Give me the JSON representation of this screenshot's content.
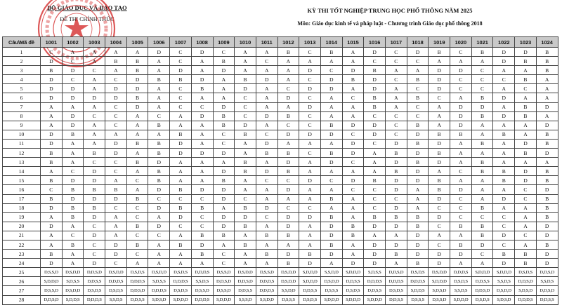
{
  "header": {
    "ministry": "BỘ GIÁO DỤC VÀ ĐÀO TẠO",
    "exam_type": "ĐỀ THI CHÍNH THỨC",
    "exam_title": "KỲ THI TỐT NGHIỆP TRUNG HỌC PHỔ THÔNG NĂM 2025",
    "subject": "Môn: Giáo dục kinh tế và pháp luật - Chương trình Giáo dục phổ thông 2018"
  },
  "seal": {
    "text": "BỘ GIÁO DỤC VÀ ĐÀO TẠO",
    "color": "#d42a2a"
  },
  "table": {
    "corner_label": "Câu\\Mã đề",
    "header_bg": "#c9c9c9",
    "codes": [
      "1001",
      "1002",
      "1003",
      "1004",
      "1005",
      "1006",
      "1007",
      "1008",
      "1009",
      "1010",
      "1011",
      "1012",
      "1013",
      "1014",
      "1015",
      "1016",
      "1017",
      "1018",
      "1019",
      "1020",
      "1021",
      "1022",
      "1023",
      "1024"
    ],
    "rows": [
      {
        "q": "1",
        "a": [
          "C",
          "A",
          "A",
          "A",
          "A",
          "D",
          "C",
          "D",
          "C",
          "A",
          "A",
          "B",
          "C",
          "B",
          "A",
          "D",
          "C",
          "D",
          "B",
          "C",
          "B",
          "D",
          "D",
          "B"
        ]
      },
      {
        "q": "2",
        "a": [
          "D",
          "C",
          "A",
          "B",
          "B",
          "A",
          "C",
          "A",
          "B",
          "A",
          "C",
          "A",
          "A",
          "A",
          "A",
          "C",
          "C",
          "C",
          "A",
          "A",
          "A",
          "D",
          "B",
          "B"
        ]
      },
      {
        "q": "3",
        "a": [
          "B",
          "D",
          "C",
          "A",
          "B",
          "A",
          "D",
          "A",
          "D",
          "A",
          "A",
          "A",
          "D",
          "C",
          "D",
          "B",
          "A",
          "A",
          "D",
          "D",
          "C",
          "A",
          "A",
          "B"
        ]
      },
      {
        "q": "4",
        "a": [
          "D",
          "C",
          "A",
          "C",
          "D",
          "B",
          "B",
          "D",
          "A",
          "B",
          "D",
          "A",
          "C",
          "D",
          "B",
          "D",
          "C",
          "B",
          "D",
          "C",
          "C",
          "C",
          "B",
          "A"
        ]
      },
      {
        "q": "5",
        "a": [
          "D",
          "D",
          "A",
          "D",
          "D",
          "A",
          "C",
          "B",
          "A",
          "D",
          "A",
          "C",
          "D",
          "D",
          "A",
          "D",
          "A",
          "C",
          "D",
          "C",
          "C",
          "A",
          "C",
          "A"
        ]
      },
      {
        "q": "6",
        "a": [
          "D",
          "D",
          "D",
          "D",
          "B",
          "A",
          "C",
          "A",
          "A",
          "C",
          "A",
          "D",
          "C",
          "A",
          "C",
          "B",
          "A",
          "B",
          "C",
          "A",
          "B",
          "D",
          "A",
          "A"
        ]
      },
      {
        "q": "7",
        "a": [
          "A",
          "A",
          "A",
          "C",
          "D",
          "A",
          "C",
          "C",
          "D",
          "C",
          "A",
          "A",
          "D",
          "A",
          "A",
          "B",
          "A",
          "C",
          "A",
          "D",
          "D",
          "A",
          "B",
          "D"
        ]
      },
      {
        "q": "8",
        "a": [
          "A",
          "D",
          "C",
          "C",
          "A",
          "C",
          "A",
          "D",
          "B",
          "C",
          "D",
          "B",
          "C",
          "A",
          "A",
          "C",
          "C",
          "C",
          "A",
          "D",
          "B",
          "D",
          "B",
          "A"
        ]
      },
      {
        "q": "9",
        "a": [
          "A",
          "D",
          "A",
          "C",
          "A",
          "B",
          "A",
          "A",
          "B",
          "D",
          "A",
          "C",
          "C",
          "B",
          "D",
          "D",
          "C",
          "B",
          "A",
          "D",
          "A",
          "A",
          "A",
          "D"
        ]
      },
      {
        "q": "10",
        "a": [
          "D",
          "B",
          "A",
          "A",
          "A",
          "A",
          "B",
          "A",
          "C",
          "B",
          "C",
          "D",
          "D",
          "D",
          "C",
          "D",
          "C",
          "D",
          "B",
          "B",
          "A",
          "B",
          "A",
          "B"
        ]
      },
      {
        "q": "11",
        "a": [
          "D",
          "A",
          "A",
          "D",
          "B",
          "B",
          "D",
          "A",
          "C",
          "A",
          "D",
          "A",
          "A",
          "A",
          "D",
          "C",
          "D",
          "B",
          "D",
          "A",
          "B",
          "A",
          "D",
          "B"
        ]
      },
      {
        "q": "12",
        "a": [
          "B",
          "A",
          "B",
          "D",
          "A",
          "B",
          "D",
          "D",
          "D",
          "A",
          "B",
          "B",
          "C",
          "B",
          "D",
          "A",
          "B",
          "D",
          "B",
          "A",
          "A",
          "A",
          "B",
          "D"
        ]
      },
      {
        "q": "13",
        "a": [
          "B",
          "A",
          "C",
          "C",
          "B",
          "D",
          "A",
          "A",
          "A",
          "B",
          "A",
          "D",
          "A",
          "D",
          "C",
          "A",
          "D",
          "B",
          "D",
          "A",
          "B",
          "A",
          "A",
          "A"
        ]
      },
      {
        "q": "14",
        "a": [
          "A",
          "C",
          "D",
          "C",
          "A",
          "B",
          "A",
          "A",
          "D",
          "B",
          "D",
          "B",
          "A",
          "A",
          "A",
          "A",
          "B",
          "D",
          "A",
          "C",
          "B",
          "B",
          "D",
          "B"
        ]
      },
      {
        "q": "15",
        "a": [
          "B",
          "D",
          "D",
          "A",
          "C",
          "B",
          "A",
          "A",
          "B",
          "A",
          "C",
          "C",
          "D",
          "C",
          "D",
          "B",
          "D",
          "D",
          "B",
          "A",
          "A",
          "B",
          "D",
          "B"
        ]
      },
      {
        "q": "16",
        "a": [
          "C",
          "B",
          "B",
          "B",
          "A",
          "D",
          "B",
          "D",
          "D",
          "A",
          "A",
          "D",
          "A",
          "A",
          "C",
          "C",
          "D",
          "A",
          "B",
          "D",
          "A",
          "A",
          "C",
          "D"
        ]
      },
      {
        "q": "17",
        "a": [
          "B",
          "D",
          "D",
          "D",
          "B",
          "C",
          "C",
          "C",
          "D",
          "C",
          "A",
          "A",
          "A",
          "B",
          "A",
          "C",
          "C",
          "A",
          "D",
          "C",
          "A",
          "D",
          "C",
          "B"
        ]
      },
      {
        "q": "18",
        "a": [
          "D",
          "B",
          "B",
          "C",
          "C",
          "D",
          "B",
          "B",
          "A",
          "B",
          "D",
          "C",
          "C",
          "A",
          "A",
          "C",
          "D",
          "A",
          "C",
          "C",
          "B",
          "A",
          "A",
          "B"
        ]
      },
      {
        "q": "19",
        "a": [
          "A",
          "B",
          "D",
          "A",
          "C",
          "A",
          "D",
          "C",
          "D",
          "D",
          "C",
          "D",
          "D",
          "B",
          "A",
          "B",
          "B",
          "B",
          "D",
          "C",
          "C",
          "C",
          "A",
          "B"
        ]
      },
      {
        "q": "20",
        "a": [
          "D",
          "A",
          "C",
          "A",
          "B",
          "D",
          "C",
          "C",
          "D",
          "B",
          "A",
          "D",
          "A",
          "D",
          "B",
          "D",
          "D",
          "B",
          "C",
          "B",
          "B",
          "C",
          "A",
          "D"
        ]
      },
      {
        "q": "21",
        "a": [
          "A",
          "C",
          "D",
          "A",
          "C",
          "C",
          "A",
          "B",
          "B",
          "A",
          "B",
          "B",
          "A",
          "D",
          "B",
          "A",
          "A",
          "D",
          "A",
          "A",
          "B",
          "D",
          "C",
          "D"
        ]
      },
      {
        "q": "22",
        "a": [
          "A",
          "B",
          "C",
          "D",
          "B",
          "A",
          "B",
          "D",
          "A",
          "B",
          "A",
          "A",
          "A",
          "B",
          "A",
          "D",
          "D",
          "D",
          "C",
          "B",
          "D",
          "C",
          "A",
          "B"
        ]
      },
      {
        "q": "23",
        "a": [
          "B",
          "A",
          "C",
          "D",
          "C",
          "A",
          "A",
          "B",
          "C",
          "A",
          "B",
          "D",
          "B",
          "D",
          "A",
          "D",
          "B",
          "D",
          "D",
          "D",
          "C",
          "B",
          "B",
          "D"
        ]
      },
      {
        "q": "24",
        "a": [
          "D",
          "A",
          "D",
          "C",
          "A",
          "A",
          "A",
          "A",
          "C",
          "A",
          "A",
          "B",
          "D",
          "A",
          "D",
          "D",
          "A",
          "B",
          "D",
          "A",
          "A",
          "D",
          "B",
          "D"
        ]
      },
      {
        "q": "25",
        "a": [
          "D,S,S,D",
          "D,S,D,D",
          "D,D,S,D",
          "D,S,D,D",
          "D,S,D,S",
          "D,S,D,D",
          "D,S,D,S",
          "D,D,D,S",
          "D,S,S,D",
          "D,S,D,D",
          "D,S,S,D",
          "D,S,D,D",
          "S,D,D,D",
          "S,S,D,D",
          "S,D,D,D",
          "S,D,S,S",
          "D,D,S,D",
          "D,S,D,S",
          "D,S,D,D",
          "D,D,D,S",
          "S,D,D,D",
          "S,D,D,D",
          "D,S,D,S",
          "D,D,S,D"
        ]
      },
      {
        "q": "26",
        "a": [
          "S,D,D,D",
          "S,D,S,S",
          "D,D,S,S",
          "D,D,D,S",
          "D,D,D,S",
          "S,D,S,S",
          "D,D,D,S",
          "S,S,D,S",
          "D,D,S,D",
          "D,D,S,D",
          "D,D,D,S",
          "D,S,D,D",
          "S,D,D,D",
          "D,S,D,D",
          "D,D,S,S",
          "D,D,D,S",
          "D,D,D,S",
          "D,D,D,S",
          "S,D,D,D",
          "D,S,D,S",
          "D,D,S,S",
          "S,S,D,S",
          "D,D,S,D",
          "S,S,D,S"
        ]
      },
      {
        "q": "27",
        "a": [
          "D,S,S,D",
          "D,S,D,D",
          "D,S,D,S",
          "D,S,D,S",
          "D,D,S,D",
          "D,D,D,S",
          "D,S,D,S",
          "D,S,S,D",
          "D,S,S,D",
          "D,D,S,S",
          "D,D,D,S",
          "S,S,D,D",
          "D,D,S,S",
          "D,S,S,S",
          "D,S,D,S",
          "D,D,S,S",
          "D,S,D,S",
          "S,D,D,S",
          "S,D,S,D",
          "S,S,D,S",
          "D,D,S,D",
          "D,S,D,D",
          "S,D,S,D",
          "D,D,S,D"
        ]
      },
      {
        "q": "28",
        "a": [
          "D,D,S,D",
          "S,D,D,S",
          "D,D,D,S",
          "S,S,D,S",
          "D,D,S,S",
          "S,D,S,D",
          "S,D,D,D",
          "D,D,D,S",
          "S,D,D,D",
          "S,S,S,D",
          "S,S,D,D",
          "D,S,S,S",
          "D,S,D,S",
          "S,D,D,D",
          "S,D,D,D",
          "S,D,D,D",
          "D,D,S,S",
          "D,S,S,S",
          "D,S,S,D",
          "S,D,D,D",
          "D,S,D,S",
          "S,D,S,D",
          "D,D,D,S",
          "D,D,S,S"
        ]
      }
    ]
  }
}
